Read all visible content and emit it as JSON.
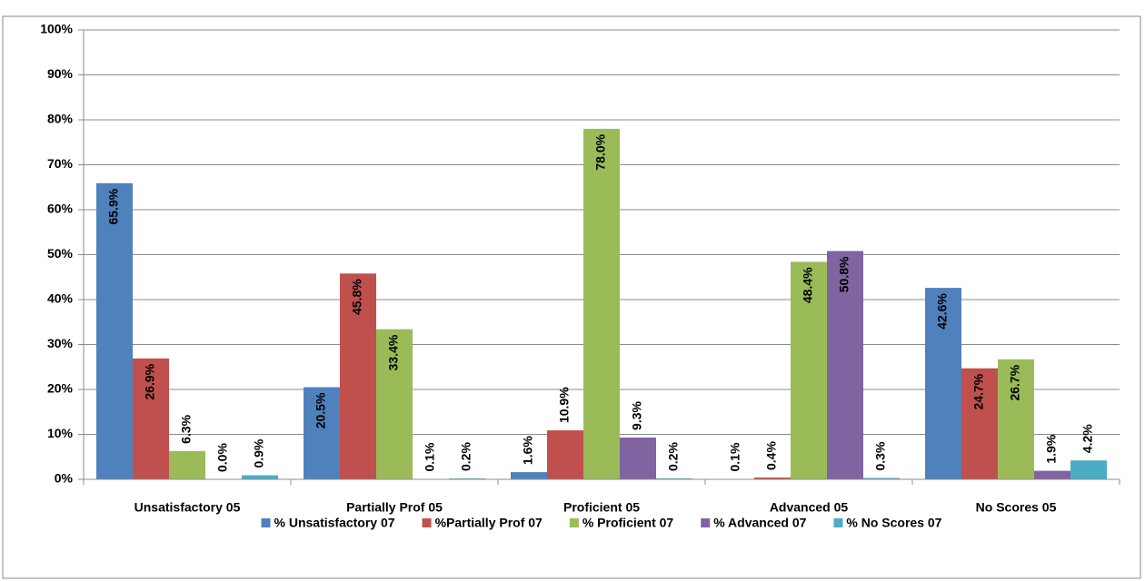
{
  "chart_data": {
    "type": "bar",
    "categories": [
      "Unsatisfactory  05",
      "Partially Prof 05",
      "Proficient 05",
      "Advanced 05",
      "No Scores 05"
    ],
    "series": [
      {
        "name": "% Unsatisfactory 07",
        "color": "#4f81bd",
        "values": [
          65.9,
          20.5,
          1.6,
          0.1,
          42.6
        ],
        "value_labels": [
          "65.9%",
          "20.5%",
          "1.6%",
          "0.1%",
          "42.6%"
        ]
      },
      {
        "name": "%Partially Prof 07",
        "color": "#c0504d",
        "values": [
          26.9,
          45.8,
          10.9,
          0.4,
          24.7
        ],
        "value_labels": [
          "26.9%",
          "45.8%",
          "10.9%",
          "0.4%",
          "24.7%"
        ]
      },
      {
        "name": "% Proficient 07",
        "color": "#9bbb59",
        "values": [
          6.3,
          33.4,
          78.0,
          48.4,
          26.7
        ],
        "value_labels": [
          "6.3%",
          "33.4%",
          "78.0%",
          "48.4%",
          "26.7%"
        ]
      },
      {
        "name": "% Advanced 07",
        "color": "#8064a2",
        "values": [
          0.0,
          0.1,
          9.3,
          50.8,
          1.9
        ],
        "value_labels": [
          "0.0%",
          "0.1%",
          "9.3%",
          "50.8%",
          "1.9%"
        ]
      },
      {
        "name": "% No Scores 07",
        "color": "#4bacc6",
        "values": [
          0.9,
          0.2,
          0.2,
          0.3,
          4.2
        ],
        "value_labels": [
          "0.9%",
          "0.2%",
          "0.2%",
          "0.3%",
          "4.2%"
        ]
      }
    ],
    "ylim": [
      0,
      100
    ],
    "yticks": [
      {
        "value": 0,
        "label": "0%"
      },
      {
        "value": 10,
        "label": "10%"
      },
      {
        "value": 20,
        "label": "20%"
      },
      {
        "value": 30,
        "label": "30%"
      },
      {
        "value": 40,
        "label": "40%"
      },
      {
        "value": 50,
        "label": "50%"
      },
      {
        "value": 60,
        "label": "60%"
      },
      {
        "value": 70,
        "label": "70%"
      },
      {
        "value": 80,
        "label": "80%"
      },
      {
        "value": 90,
        "label": "90%"
      },
      {
        "value": 100,
        "label": "100%"
      }
    ],
    "grid": true,
    "legend": "bottom"
  }
}
